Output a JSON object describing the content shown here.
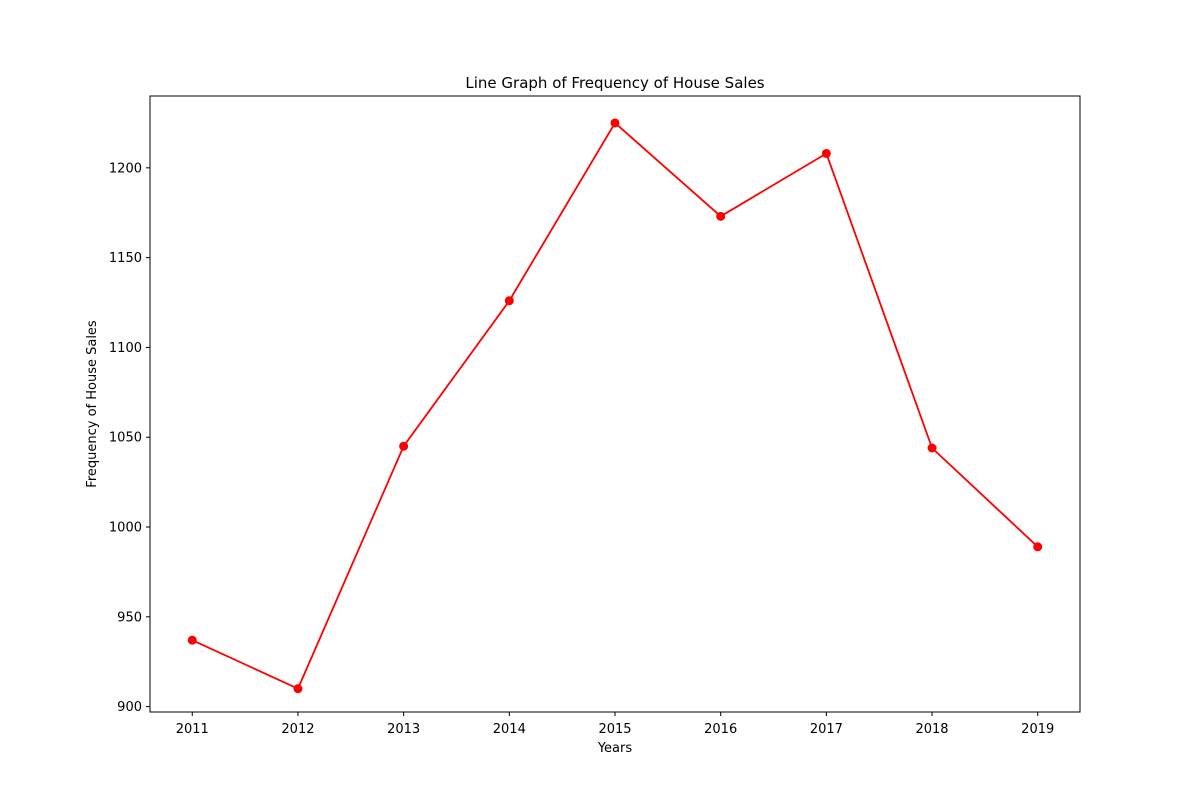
{
  "chart_data": {
    "type": "line",
    "title": "Line Graph of Frequency of House Sales",
    "xlabel": "Years",
    "ylabel": "Frequency of House Sales",
    "x": [
      2011,
      2012,
      2013,
      2014,
      2015,
      2016,
      2017,
      2018,
      2019
    ],
    "x_tick_labels": [
      "2011",
      "2012",
      "2013",
      "2014",
      "2015",
      "2016",
      "2017",
      "2018",
      "2019"
    ],
    "y_ticks": [
      900,
      950,
      1000,
      1050,
      1100,
      1150,
      1200
    ],
    "y_tick_labels": [
      "900",
      "950",
      "1000",
      "1050",
      "1100",
      "1150",
      "1200"
    ],
    "xlim": [
      2010.6,
      2019.4
    ],
    "ylim": [
      897,
      1240
    ],
    "grid": false,
    "series": [
      {
        "values": [
          937,
          910,
          1045,
          1126,
          1225,
          1173,
          1208,
          1044,
          989
        ],
        "color": "#ff0000",
        "marker": "circle"
      }
    ]
  }
}
